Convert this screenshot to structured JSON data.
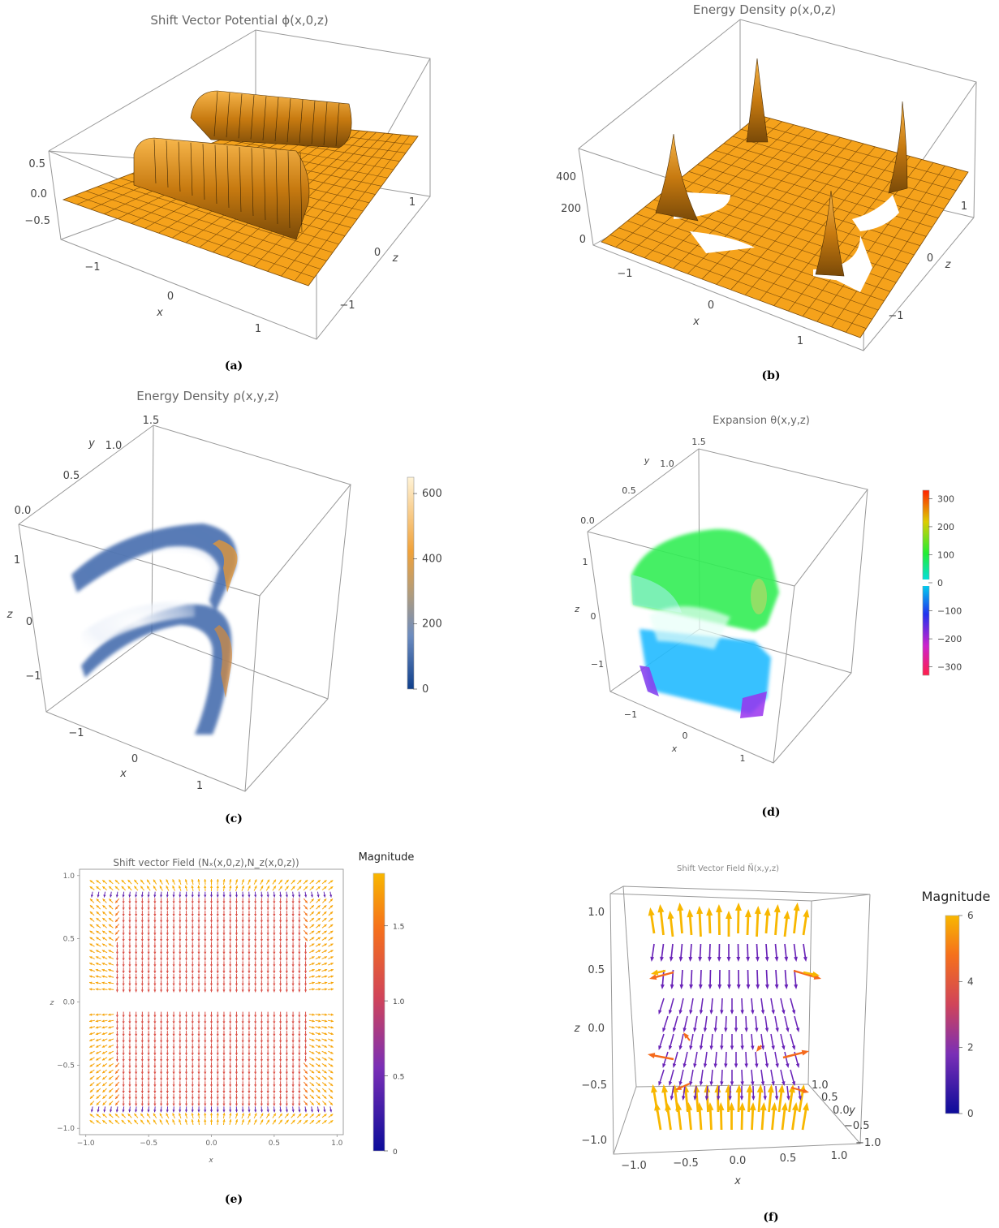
{
  "panels": {
    "a": {
      "caption": "(a)",
      "title": "Shift Vector Potential ϕ(x,0,z)",
      "xlabel": "x",
      "zlabel": "z",
      "vertical_ticks": [
        "0.5",
        "0.0",
        "−0.5"
      ],
      "x_ticks": [
        "−1",
        "0",
        "1"
      ],
      "z_ticks": [
        "1",
        "0",
        "−1"
      ]
    },
    "b": {
      "caption": "(b)",
      "title": "Energy Density ρ(x,0,z)",
      "xlabel": "x",
      "zlabel": "z",
      "vertical_ticks": [
        "400",
        "200",
        "0"
      ],
      "x_ticks": [
        "−1",
        "0",
        "1"
      ],
      "z_ticks": [
        "1",
        "0",
        "−1"
      ]
    },
    "c": {
      "caption": "(c)",
      "title": "Energy Density ρ(x,y,z)",
      "xlabel": "x",
      "ylabel": "y",
      "zlabel": "z",
      "x_ticks": [
        "−1",
        "0",
        "1"
      ],
      "y_ticks": [
        "1.5",
        "1.0",
        "0.5",
        "0.0"
      ],
      "z_ticks": [
        "1",
        "0",
        "−1"
      ],
      "colorbar_ticks": [
        "600",
        "400",
        "200",
        "0"
      ]
    },
    "d": {
      "caption": "(d)",
      "title": "Expansion θ(x,y,z)",
      "xlabel": "x",
      "ylabel": "y",
      "zlabel": "z",
      "x_ticks": [
        "−1",
        "0",
        "1"
      ],
      "y_ticks": [
        "1.5",
        "1.0",
        "0.5",
        "0.0"
      ],
      "z_ticks": [
        "1",
        "0",
        "−1"
      ],
      "colorbar_ticks": [
        "300",
        "200",
        "100",
        "0",
        "−100",
        "−200",
        "−300"
      ]
    },
    "e": {
      "caption": "(e)",
      "title": "Shift vector Field (Nₓ(x,0,z),N_z(x,0,z))",
      "xlabel": "x",
      "ylabel": "z",
      "legend_title": "Magnitude",
      "x_ticks": [
        "−1.0",
        "−0.5",
        "0.0",
        "0.5",
        "1.0"
      ],
      "y_ticks": [
        "1.0",
        "0.5",
        "0.0",
        "−0.5",
        "−1.0"
      ],
      "colorbar_ticks": [
        "1.5",
        "1.0",
        "0.5",
        "0"
      ]
    },
    "f": {
      "caption": "(f)",
      "title": "Shift Vector Field N⃗(x,y,z)",
      "xlabel": "x",
      "ylabel": "y",
      "zlabel": "z",
      "legend_title": "Magnitude",
      "x_ticks": [
        "−1.0",
        "−0.5",
        "0.0",
        "0.5",
        "1.0"
      ],
      "y_ticks": [
        "1.0",
        "0.5",
        "0.0",
        "−0.5",
        "−1.0"
      ],
      "z_ticks": [
        "1.0",
        "0.5",
        "0.0",
        "−0.5",
        "−1.0"
      ],
      "colorbar_ticks": [
        "6",
        "4",
        "2",
        "0"
      ]
    }
  },
  "chart_data": [
    {
      "type": "surface",
      "title": "Shift Vector Potential ϕ(x,0,z)",
      "x_range": [
        -1.5,
        1.5
      ],
      "z_range": [
        -1.5,
        1.5
      ],
      "value_range": [
        -0.75,
        0.75
      ],
      "features": [
        {
          "label": "ridge",
          "z": 0.45,
          "x_range": [
            -1,
            1
          ],
          "value": 0.6
        },
        {
          "label": "trough",
          "z": -0.45,
          "x_range": [
            -1,
            1
          ],
          "value": -0.6
        }
      ],
      "color": "#f5a21b"
    },
    {
      "type": "surface",
      "title": "Energy Density ρ(x,0,z)",
      "x_range": [
        -1.5,
        1.5
      ],
      "z_range": [
        -1.5,
        1.5
      ],
      "value_range": [
        0,
        520
      ],
      "peaks": [
        {
          "x": -1,
          "z": 1,
          "value": 500
        },
        {
          "x": 1,
          "z": 1,
          "value": 470
        },
        {
          "x": -1,
          "z": -1,
          "value": 460
        },
        {
          "x": 1,
          "z": -1,
          "value": 440
        }
      ],
      "color": "#f5a21b"
    },
    {
      "type": "volume",
      "title": "Energy Density ρ(x,y,z)",
      "x_range": [
        -1.5,
        1.5
      ],
      "y_range": [
        0,
        1.5
      ],
      "z_range": [
        -1.5,
        1.5
      ],
      "colorbar_range": [
        0,
        650
      ]
    },
    {
      "type": "volume",
      "title": "Expansion θ(x,y,z)",
      "x_range": [
        -1.5,
        1.5
      ],
      "y_range": [
        0,
        1.5
      ],
      "z_range": [
        -1.5,
        1.5
      ],
      "colorbar_range": [
        -330,
        330
      ],
      "regions": [
        {
          "label": "upper",
          "z_range": [
            0.05,
            1
          ],
          "value": 100
        },
        {
          "label": "lower",
          "z_range": [
            -1,
            -0.05
          ],
          "value": -60
        }
      ]
    },
    {
      "type": "vector_field",
      "title": "Shift vector Field (Nₓ(x,0,z),N_z(x,0,z))",
      "xlabel": "x",
      "ylabel": "z",
      "xlim": [
        -1.0,
        1.0
      ],
      "ylim": [
        -1.0,
        1.0
      ],
      "grid_step": 0.05,
      "magnitude_range": [
        0,
        1.85
      ],
      "legend": "Magnitude"
    },
    {
      "type": "vector_field_3d",
      "title": "Shift Vector Field N⃗(x,y,z)",
      "xlim": [
        -1.0,
        1.0
      ],
      "ylim": [
        -1.0,
        1.0
      ],
      "zlim": [
        -1.0,
        1.0
      ],
      "magnitude_range": [
        0,
        6
      ],
      "legend": "Magnitude"
    }
  ],
  "colors": {
    "surface": "#f5a21b",
    "axis": "#555555",
    "box": "#999999",
    "tick": "#444444"
  }
}
